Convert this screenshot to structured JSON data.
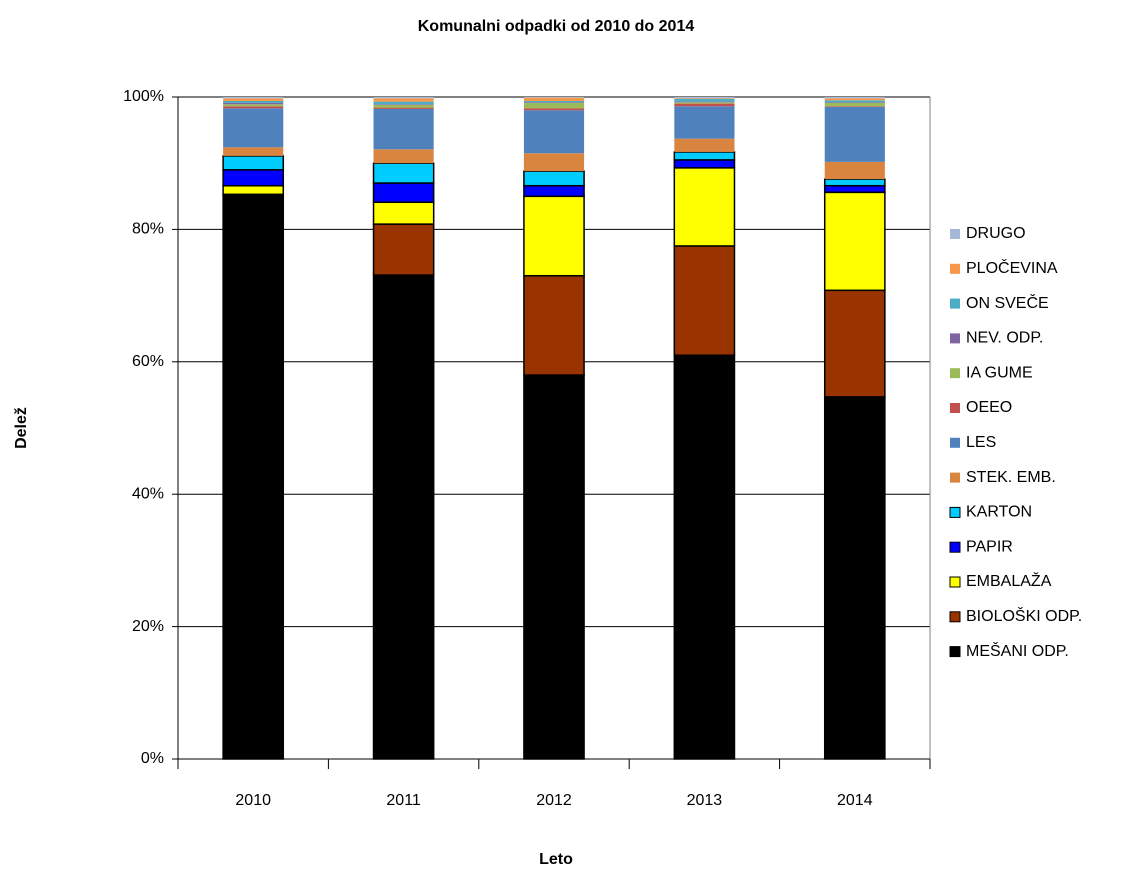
{
  "chart_data": {
    "type": "stacked_bar",
    "title": "Komunalni odpadki od 2010 do 2014",
    "x_label": "Leto",
    "y_label": "Delež",
    "categories": [
      "2010",
      "2011",
      "2012",
      "2013",
      "2014"
    ],
    "ylim": [
      0,
      100
    ],
    "yticks": [
      {
        "value": 0,
        "label": "0%"
      },
      {
        "value": 20,
        "label": "20%"
      },
      {
        "value": 40,
        "label": "40%"
      },
      {
        "value": 60,
        "label": "60%"
      },
      {
        "value": 80,
        "label": "80%"
      },
      {
        "value": 100,
        "label": "100%"
      }
    ],
    "grid": true,
    "legend": "right",
    "series": [
      {
        "name": "MEŠANI ODP.",
        "color": "#000000",
        "border": "#000000",
        "values": [
          85.3,
          73.1,
          58.0,
          61.0,
          54.7
        ]
      },
      {
        "name": "BIOLOŠKI ODP.",
        "color": "#993300",
        "border": "#000000",
        "values": [
          0,
          7.7,
          15.0,
          16.5,
          16.1
        ]
      },
      {
        "name": "EMBALAŽA",
        "color": "#ffff00",
        "border": "#000000",
        "values": [
          1.3,
          3.3,
          12.0,
          11.8,
          14.8
        ]
      },
      {
        "name": "PAPIR",
        "color": "#0000ff",
        "border": "#000000",
        "values": [
          2.4,
          2.9,
          1.6,
          1.2,
          1.0
        ]
      },
      {
        "name": "KARTON",
        "color": "#00ccff",
        "border": "#000000",
        "values": [
          2.1,
          3.0,
          2.2,
          1.2,
          1.0
        ]
      },
      {
        "name": "STEK. EMB.",
        "color": "#d9843f",
        "values": [
          1.3,
          2.1,
          2.7,
          2.0,
          2.6
        ]
      },
      {
        "name": "LES",
        "color": "#4f81bd",
        "values": [
          5.9,
          6.1,
          6.5,
          4.9,
          8.3
        ]
      },
      {
        "name": "OEEO",
        "color": "#c0504d",
        "values": [
          0.3,
          0.2,
          0.3,
          0.4,
          0.1
        ]
      },
      {
        "name": "IA GUME",
        "color": "#9bbb59",
        "values": [
          0.3,
          0.4,
          0.8,
          0.2,
          0.5
        ]
      },
      {
        "name": "NEV. ODP.",
        "color": "#8064a2",
        "values": [
          0.2,
          0.1,
          0.1,
          0.1,
          0.1
        ]
      },
      {
        "name": "ON SVEČE",
        "color": "#4bacc6",
        "values": [
          0.3,
          0.4,
          0.2,
          0.4,
          0.3
        ]
      },
      {
        "name": "PLOČEVINA",
        "color": "#f79646",
        "values": [
          0.4,
          0.5,
          0.5,
          0.1,
          0.3
        ]
      },
      {
        "name": "DRUGO",
        "color": "#a6b8d8",
        "values": [
          0.2,
          0.2,
          0.1,
          0.2,
          0.2
        ]
      }
    ]
  }
}
